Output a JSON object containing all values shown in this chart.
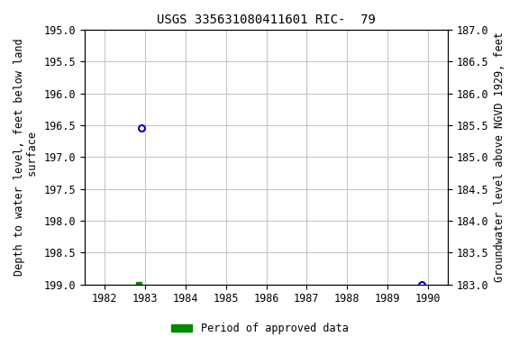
{
  "title": "USGS 335631080411601 RIC-  79",
  "ylabel_left": "Depth to water level, feet below land\n surface",
  "ylabel_right": "Groundwater level above NGVD 1929, feet",
  "ylim_left_top": 195.0,
  "ylim_left_bottom": 199.0,
  "ylim_right_top": 187.0,
  "ylim_right_bottom": 183.0,
  "xlim": [
    1981.5,
    1990.5
  ],
  "xticks": [
    1982,
    1983,
    1984,
    1985,
    1986,
    1987,
    1988,
    1989,
    1990
  ],
  "yticks_left": [
    195.0,
    195.5,
    196.0,
    196.5,
    197.0,
    197.5,
    198.0,
    198.5,
    199.0
  ],
  "yticks_right": [
    183.0,
    183.5,
    184.0,
    184.5,
    185.0,
    185.5,
    186.0,
    186.5,
    187.0
  ],
  "open_circle_points": [
    [
      1982.9,
      196.55
    ],
    [
      1989.85,
      199.0
    ]
  ],
  "filled_square_points": [
    [
      1982.85,
      199.0
    ]
  ],
  "background_color": "#ffffff",
  "grid_color": "#c8c8c8",
  "point_circle_color": "#0000cc",
  "point_square_color": "#008800",
  "legend_label": "Period of approved data",
  "legend_color": "#008800",
  "title_fontsize": 10,
  "axis_label_fontsize": 8.5,
  "tick_fontsize": 8.5
}
